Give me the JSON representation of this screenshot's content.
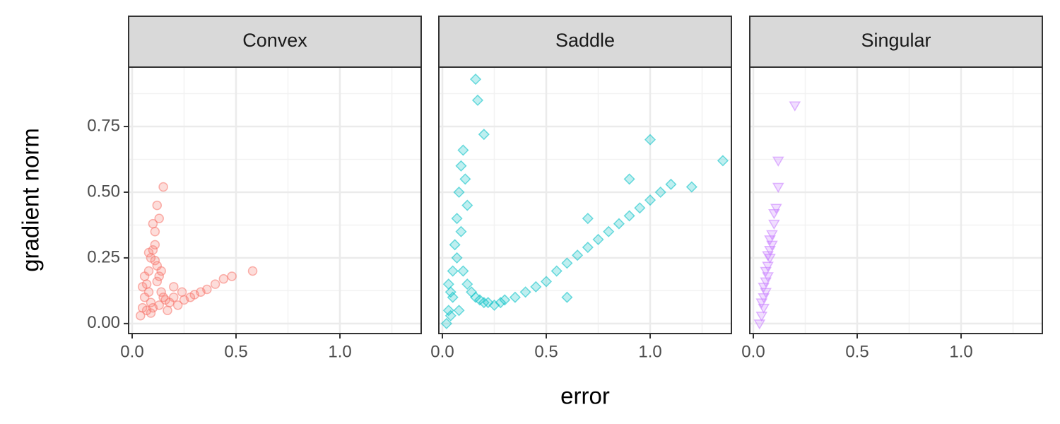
{
  "chart_data": [
    {
      "type": "scatter",
      "title": "Convex",
      "ylabel": "gradient norm",
      "color": "#F8766D",
      "shape": "circle",
      "grid": true,
      "xlim": [
        -0.017,
        1.391
      ],
      "ylim": [
        -0.038,
        0.976
      ],
      "xticks": [
        {
          "value": 0,
          "label": "0.0"
        },
        {
          "value": 0.5,
          "label": "0.5"
        },
        {
          "value": 1,
          "label": "1.0"
        }
      ],
      "yticks": [
        {
          "value": 0,
          "label": "0.00"
        },
        {
          "value": 0.25,
          "label": "0.25"
        },
        {
          "value": 0.5,
          "label": "0.50"
        },
        {
          "value": 0.75,
          "label": "0.75"
        }
      ],
      "xminor": [
        0.25,
        0.75,
        1.25
      ],
      "yminor": [
        0.125,
        0.375,
        0.625,
        0.875
      ],
      "x": [
        0.04,
        0.05,
        0.06,
        0.07,
        0.08,
        0.09,
        0.1,
        0.11,
        0.12,
        0.13,
        0.14,
        0.15,
        0.05,
        0.07,
        0.09,
        0.11,
        0.13,
        0.06,
        0.08,
        0.1,
        0.12,
        0.14,
        0.16,
        0.18,
        0.2,
        0.22,
        0.25,
        0.28,
        0.3,
        0.33,
        0.36,
        0.4,
        0.44,
        0.48,
        0.58,
        0.1,
        0.12,
        0.15,
        0.08,
        0.11,
        0.2,
        0.24,
        0.17,
        0.13,
        0.09
      ],
      "y": [
        0.03,
        0.06,
        0.1,
        0.15,
        0.2,
        0.25,
        0.28,
        0.3,
        0.22,
        0.18,
        0.12,
        0.1,
        0.14,
        0.05,
        0.08,
        0.35,
        0.4,
        0.18,
        0.12,
        0.06,
        0.16,
        0.2,
        0.09,
        0.08,
        0.1,
        0.07,
        0.09,
        0.1,
        0.11,
        0.12,
        0.13,
        0.15,
        0.17,
        0.18,
        0.2,
        0.38,
        0.45,
        0.52,
        0.27,
        0.24,
        0.14,
        0.12,
        0.05,
        0.07,
        0.04
      ]
    },
    {
      "type": "scatter",
      "title": "Saddle",
      "xlabel": "error",
      "color": "#00BFC4",
      "shape": "diamond",
      "grid": true,
      "xticks": [
        {
          "value": 0,
          "label": "0.0"
        },
        {
          "value": 0.5,
          "label": "0.5"
        },
        {
          "value": 1,
          "label": "1.0"
        }
      ],
      "x": [
        0.02,
        0.03,
        0.04,
        0.05,
        0.06,
        0.07,
        0.08,
        0.09,
        0.1,
        0.11,
        0.12,
        0.05,
        0.07,
        0.09,
        0.1,
        0.12,
        0.14,
        0.16,
        0.18,
        0.2,
        0.22,
        0.25,
        0.28,
        0.3,
        0.35,
        0.4,
        0.45,
        0.5,
        0.55,
        0.6,
        0.65,
        0.7,
        0.75,
        0.8,
        0.85,
        0.9,
        0.95,
        1.0,
        1.05,
        1.1,
        1.2,
        1.35,
        0.16,
        0.17,
        0.2,
        0.08,
        0.04,
        0.03,
        0.6,
        0.7,
        0.9,
        1.0
      ],
      "y": [
        0.0,
        0.05,
        0.12,
        0.2,
        0.3,
        0.4,
        0.5,
        0.6,
        0.66,
        0.55,
        0.45,
        0.1,
        0.25,
        0.35,
        0.2,
        0.15,
        0.12,
        0.1,
        0.09,
        0.08,
        0.08,
        0.07,
        0.08,
        0.09,
        0.1,
        0.12,
        0.14,
        0.16,
        0.2,
        0.23,
        0.26,
        0.29,
        0.32,
        0.35,
        0.38,
        0.41,
        0.44,
        0.47,
        0.5,
        0.53,
        0.52,
        0.62,
        0.93,
        0.85,
        0.72,
        0.05,
        0.03,
        0.15,
        0.1,
        0.4,
        0.55,
        0.7
      ]
    },
    {
      "type": "scatter",
      "title": "Singular",
      "color": "#C77CFF",
      "shape": "triangle-down",
      "grid": true,
      "xticks": [
        {
          "value": 0,
          "label": "0.0"
        },
        {
          "value": 0.5,
          "label": "0.5"
        },
        {
          "value": 1,
          "label": "1.0"
        }
      ],
      "x": [
        0.03,
        0.04,
        0.05,
        0.05,
        0.06,
        0.06,
        0.07,
        0.07,
        0.08,
        0.08,
        0.09,
        0.09,
        0.1,
        0.1,
        0.11,
        0.12,
        0.04,
        0.05,
        0.06,
        0.07,
        0.08,
        0.2,
        0.12
      ],
      "y": [
        0.0,
        0.03,
        0.06,
        0.1,
        0.12,
        0.16,
        0.18,
        0.22,
        0.25,
        0.28,
        0.3,
        0.34,
        0.38,
        0.42,
        0.44,
        0.52,
        0.08,
        0.14,
        0.2,
        0.26,
        0.32,
        0.83,
        0.62
      ]
    }
  ]
}
